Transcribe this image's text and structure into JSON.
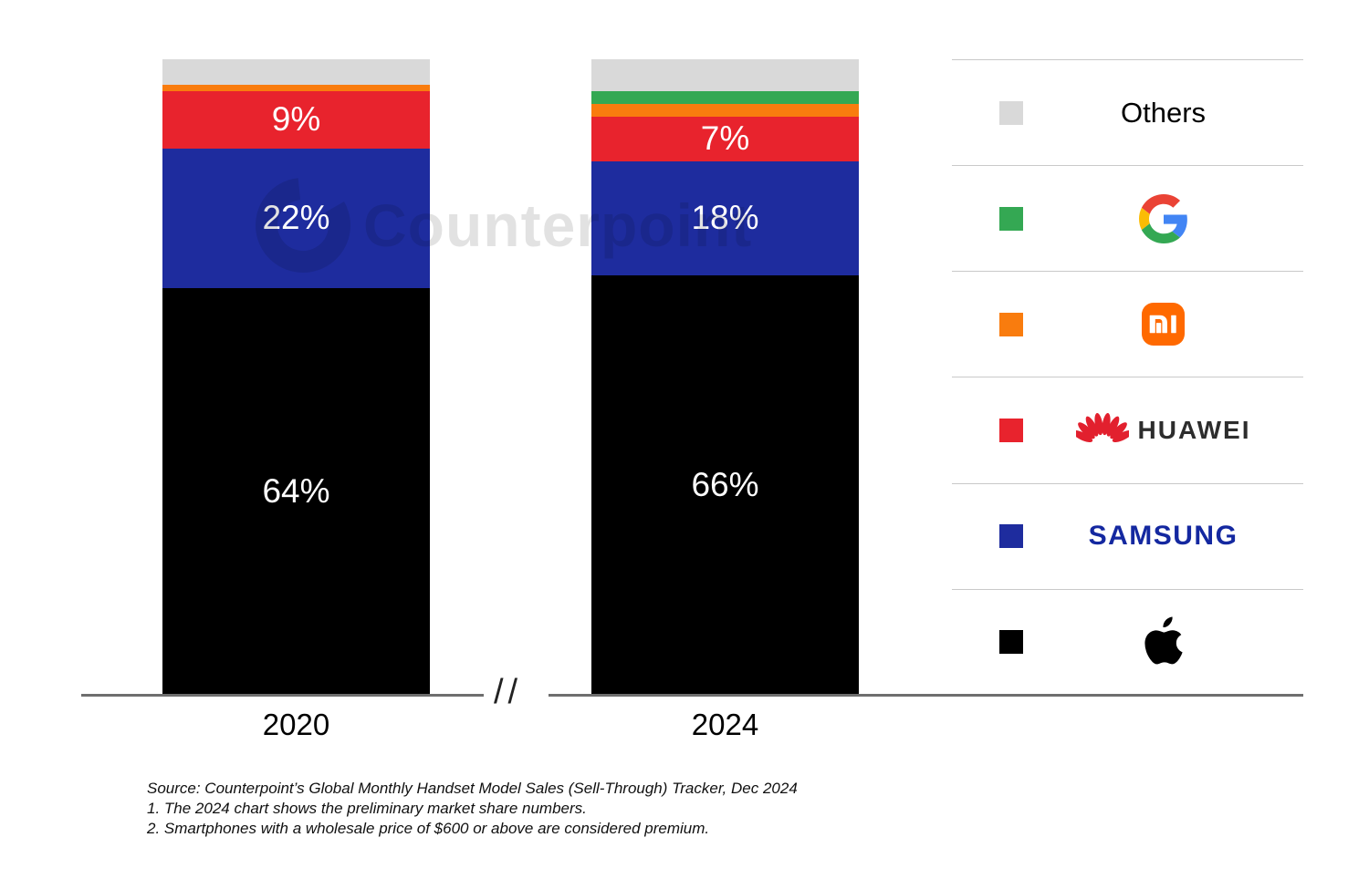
{
  "watermark": {
    "text": "Counterpoint"
  },
  "chart_data": {
    "type": "bar",
    "stacked": true,
    "unit": "%",
    "ylim": [
      0,
      100
    ],
    "grid": false,
    "legend_position": "right",
    "axis_break_label": "//",
    "categories": [
      "2020",
      "2024"
    ],
    "series": [
      {
        "name": "Others",
        "color": "#d9d9d9",
        "values": [
          4,
          5
        ],
        "labels": [
          null,
          null
        ]
      },
      {
        "name": "Google",
        "color": "#34a853",
        "values": [
          0,
          2
        ],
        "labels": [
          null,
          null
        ]
      },
      {
        "name": "Xiaomi",
        "color": "#f97c0e",
        "values": [
          1,
          2
        ],
        "labels": [
          null,
          null
        ]
      },
      {
        "name": "Huawei",
        "color": "#e8232d",
        "values": [
          9,
          7
        ],
        "labels": [
          "9%",
          "7%"
        ]
      },
      {
        "name": "Samsung",
        "color": "#1e2c9e",
        "values": [
          22,
          18
        ],
        "labels": [
          "22%",
          "18%"
        ]
      },
      {
        "name": "Apple",
        "color": "#000000",
        "values": [
          64,
          66
        ],
        "labels": [
          "64%",
          "66%"
        ]
      }
    ]
  },
  "legend": {
    "items": [
      {
        "id": "others",
        "label": "Others",
        "color": "#d9d9d9"
      },
      {
        "id": "google",
        "label": "Google",
        "color": "#34a853"
      },
      {
        "id": "xiaomi",
        "label": "Xiaomi",
        "color": "#f97c0e"
      },
      {
        "id": "huawei",
        "label": "HUAWEI",
        "color": "#e8232d"
      },
      {
        "id": "samsung",
        "label": "SAMSUNG",
        "color": "#1e2c9e"
      },
      {
        "id": "apple",
        "label": "Apple",
        "color": "#000000"
      }
    ]
  },
  "footnotes": {
    "source": "Source: Counterpoint’s Global Monthly Handset Model Sales (Sell-Through) Tracker, Dec 2024",
    "note1": "1. The 2024 chart shows the preliminary market share numbers.",
    "note2": "2. Smartphones with a wholesale price of $600 or above are considered premium."
  }
}
